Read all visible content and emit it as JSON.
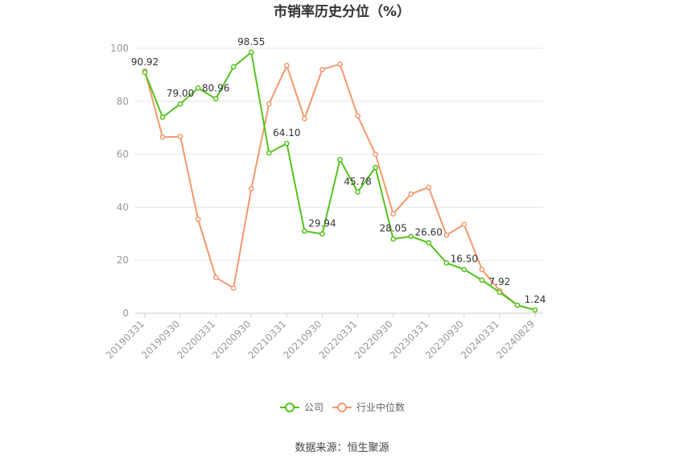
{
  "chart_data": {
    "type": "line",
    "title": "市销率历史分位（%）",
    "ylim": [
      0,
      100
    ],
    "yticks": [
      0,
      20,
      40,
      60,
      80,
      100
    ],
    "x": [
      "20190331",
      "20190630",
      "20190930",
      "20191231",
      "20200331",
      "20200630",
      "20200930",
      "20201231",
      "20210331",
      "20210630",
      "20210930",
      "20211231",
      "20220331",
      "20220630",
      "20220930",
      "20221231",
      "20230331",
      "20230630",
      "20230930",
      "20231231",
      "20240331",
      "20240630",
      "20240829"
    ],
    "xtick_labels": [
      "20190331",
      "20190930",
      "20200331",
      "20200930",
      "20210331",
      "20210930",
      "20220331",
      "20220930",
      "20230331",
      "20230930",
      "20240331",
      "20240829"
    ],
    "grid": true,
    "legend_position": "bottom",
    "series": [
      {
        "name": "公司",
        "color": "#52c41a",
        "values": [
          90.92,
          74.0,
          79.0,
          85.0,
          80.96,
          93.0,
          98.55,
          60.5,
          64.1,
          31.0,
          29.94,
          58.0,
          45.78,
          55.0,
          28.05,
          29.0,
          26.6,
          19.0,
          16.5,
          12.5,
          7.92,
          3.0,
          1.24
        ],
        "labels": [
          "90.92",
          "",
          "79.00",
          "",
          "80.96",
          "",
          "98.55",
          "",
          "64.10",
          "",
          "29.94",
          "",
          "45.78",
          "",
          "28.05",
          "",
          "26.60",
          "",
          "16.50",
          "",
          "7.92",
          "",
          "1.24"
        ]
      },
      {
        "name": "行业中位数",
        "color": "#f4976c",
        "values": [
          91.5,
          66.5,
          66.7,
          35.5,
          13.5,
          9.5,
          47.0,
          79.0,
          93.5,
          73.5,
          92.0,
          94.0,
          74.5,
          60.0,
          37.5,
          45.0,
          47.5,
          29.5,
          33.5,
          16.5,
          8.5,
          3.0,
          null
        ]
      }
    ],
    "source": "数据来源：恒生聚源"
  }
}
